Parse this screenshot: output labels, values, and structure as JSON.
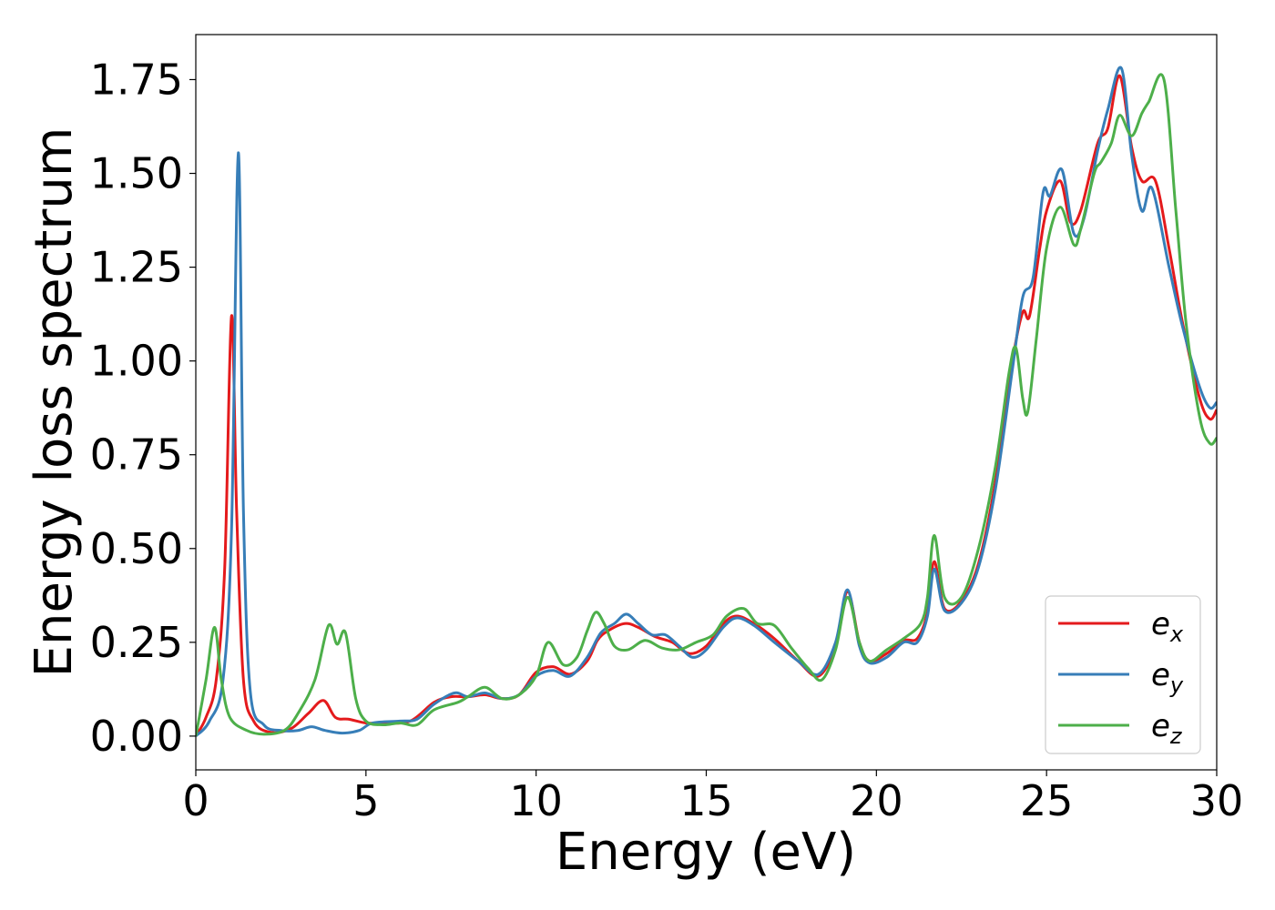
{
  "chart_data": {
    "type": "line",
    "title": "",
    "xlabel": "Energy (eV)",
    "ylabel": "Energy loss spectrum",
    "xlim": [
      0,
      30
    ],
    "ylim": [
      -0.09,
      1.87
    ],
    "xticks": [
      0,
      5,
      10,
      15,
      20,
      25,
      30
    ],
    "xtick_labels": [
      "0",
      "5",
      "10",
      "15",
      "20",
      "25",
      "30"
    ],
    "yticks": [
      0.0,
      0.25,
      0.5,
      0.75,
      1.0,
      1.25,
      1.5,
      1.75
    ],
    "ytick_labels": [
      "0.00",
      "0.25",
      "0.50",
      "0.75",
      "1.00",
      "1.25",
      "1.50",
      "1.75"
    ],
    "grid": false,
    "legend_position": "bottom-right",
    "series": [
      {
        "name": "e",
        "subscript": "x",
        "color": "#e41a1c",
        "points": [
          [
            0,
            0
          ],
          [
            0.3,
            0.05
          ],
          [
            0.6,
            0.15
          ],
          [
            0.85,
            0.45
          ],
          [
            1.05,
            1.12
          ],
          [
            1.2,
            0.6
          ],
          [
            1.4,
            0.15
          ],
          [
            1.7,
            0.04
          ],
          [
            2.2,
            0.01
          ],
          [
            2.8,
            0.02
          ],
          [
            3.3,
            0.06
          ],
          [
            3.75,
            0.095
          ],
          [
            4.1,
            0.05
          ],
          [
            4.5,
            0.045
          ],
          [
            5.0,
            0.035
          ],
          [
            5.5,
            0.035
          ],
          [
            6.3,
            0.04
          ],
          [
            7.0,
            0.09
          ],
          [
            7.5,
            0.105
          ],
          [
            8.0,
            0.105
          ],
          [
            8.5,
            0.11
          ],
          [
            9.0,
            0.1
          ],
          [
            9.5,
            0.11
          ],
          [
            10.0,
            0.17
          ],
          [
            10.5,
            0.185
          ],
          [
            11.0,
            0.165
          ],
          [
            11.5,
            0.2
          ],
          [
            11.8,
            0.255
          ],
          [
            12.1,
            0.28
          ],
          [
            12.6,
            0.3
          ],
          [
            13.0,
            0.29
          ],
          [
            13.5,
            0.265
          ],
          [
            14.0,
            0.25
          ],
          [
            14.5,
            0.22
          ],
          [
            15.0,
            0.24
          ],
          [
            15.5,
            0.3
          ],
          [
            15.9,
            0.32
          ],
          [
            16.4,
            0.3
          ],
          [
            17.0,
            0.26
          ],
          [
            17.7,
            0.2
          ],
          [
            18.3,
            0.16
          ],
          [
            18.8,
            0.24
          ],
          [
            19.15,
            0.385
          ],
          [
            19.5,
            0.25
          ],
          [
            19.8,
            0.2
          ],
          [
            20.3,
            0.22
          ],
          [
            20.8,
            0.255
          ],
          [
            21.2,
            0.26
          ],
          [
            21.5,
            0.33
          ],
          [
            21.7,
            0.465
          ],
          [
            22.0,
            0.34
          ],
          [
            22.5,
            0.36
          ],
          [
            23.0,
            0.46
          ],
          [
            23.5,
            0.68
          ],
          [
            24.0,
            1.0
          ],
          [
            24.3,
            1.13
          ],
          [
            24.5,
            1.12
          ],
          [
            24.8,
            1.3
          ],
          [
            25.0,
            1.4
          ],
          [
            25.4,
            1.48
          ],
          [
            25.7,
            1.37
          ],
          [
            26.0,
            1.4
          ],
          [
            26.5,
            1.58
          ],
          [
            26.8,
            1.62
          ],
          [
            27.15,
            1.76
          ],
          [
            27.5,
            1.57
          ],
          [
            27.8,
            1.48
          ],
          [
            28.2,
            1.48
          ],
          [
            28.6,
            1.3
          ],
          [
            29.0,
            1.1
          ],
          [
            29.5,
            0.9
          ],
          [
            29.8,
            0.845
          ],
          [
            30.0,
            0.87
          ]
        ]
      },
      {
        "name": "e",
        "subscript": "y",
        "color": "#377eb8",
        "points": [
          [
            0,
            0
          ],
          [
            0.4,
            0.04
          ],
          [
            0.8,
            0.15
          ],
          [
            1.05,
            0.55
          ],
          [
            1.25,
            1.555
          ],
          [
            1.4,
            0.6
          ],
          [
            1.6,
            0.12
          ],
          [
            2.0,
            0.03
          ],
          [
            2.5,
            0.015
          ],
          [
            3.0,
            0.015
          ],
          [
            3.4,
            0.025
          ],
          [
            3.8,
            0.015
          ],
          [
            4.3,
            0.008
          ],
          [
            4.8,
            0.015
          ],
          [
            5.2,
            0.035
          ],
          [
            6.0,
            0.04
          ],
          [
            6.5,
            0.045
          ],
          [
            7.0,
            0.085
          ],
          [
            7.6,
            0.115
          ],
          [
            8.0,
            0.105
          ],
          [
            8.5,
            0.115
          ],
          [
            9.0,
            0.1
          ],
          [
            9.5,
            0.11
          ],
          [
            10.0,
            0.16
          ],
          [
            10.5,
            0.175
          ],
          [
            11.0,
            0.16
          ],
          [
            11.5,
            0.21
          ],
          [
            11.9,
            0.275
          ],
          [
            12.3,
            0.3
          ],
          [
            12.65,
            0.325
          ],
          [
            13.0,
            0.3
          ],
          [
            13.4,
            0.27
          ],
          [
            13.8,
            0.27
          ],
          [
            14.2,
            0.24
          ],
          [
            14.6,
            0.21
          ],
          [
            15.0,
            0.23
          ],
          [
            15.5,
            0.29
          ],
          [
            15.9,
            0.315
          ],
          [
            16.4,
            0.295
          ],
          [
            17.0,
            0.25
          ],
          [
            17.7,
            0.2
          ],
          [
            18.3,
            0.165
          ],
          [
            18.8,
            0.25
          ],
          [
            19.15,
            0.39
          ],
          [
            19.5,
            0.24
          ],
          [
            19.8,
            0.195
          ],
          [
            20.3,
            0.21
          ],
          [
            20.8,
            0.25
          ],
          [
            21.2,
            0.25
          ],
          [
            21.5,
            0.32
          ],
          [
            21.7,
            0.445
          ],
          [
            22.0,
            0.335
          ],
          [
            22.5,
            0.355
          ],
          [
            23.0,
            0.45
          ],
          [
            23.5,
            0.66
          ],
          [
            24.0,
            0.98
          ],
          [
            24.3,
            1.17
          ],
          [
            24.6,
            1.22
          ],
          [
            24.9,
            1.45
          ],
          [
            25.1,
            1.44
          ],
          [
            25.45,
            1.51
          ],
          [
            25.8,
            1.34
          ],
          [
            26.1,
            1.38
          ],
          [
            26.5,
            1.56
          ],
          [
            26.8,
            1.67
          ],
          [
            27.2,
            1.78
          ],
          [
            27.5,
            1.55
          ],
          [
            27.8,
            1.4
          ],
          [
            28.1,
            1.46
          ],
          [
            28.6,
            1.25
          ],
          [
            29.0,
            1.09
          ],
          [
            29.5,
            0.93
          ],
          [
            29.8,
            0.875
          ],
          [
            30.0,
            0.89
          ]
        ]
      },
      {
        "name": "e",
        "subscript": "z",
        "color": "#4daf4a",
        "points": [
          [
            0,
            0
          ],
          [
            0.3,
            0.15
          ],
          [
            0.55,
            0.29
          ],
          [
            0.75,
            0.15
          ],
          [
            1.0,
            0.05
          ],
          [
            1.5,
            0.015
          ],
          [
            2.0,
            0.005
          ],
          [
            2.6,
            0.015
          ],
          [
            3.0,
            0.06
          ],
          [
            3.5,
            0.15
          ],
          [
            3.9,
            0.295
          ],
          [
            4.15,
            0.245
          ],
          [
            4.4,
            0.275
          ],
          [
            4.7,
            0.1
          ],
          [
            5.0,
            0.04
          ],
          [
            5.5,
            0.03
          ],
          [
            6.0,
            0.035
          ],
          [
            6.5,
            0.03
          ],
          [
            7.0,
            0.07
          ],
          [
            7.7,
            0.09
          ],
          [
            8.0,
            0.105
          ],
          [
            8.5,
            0.13
          ],
          [
            9.0,
            0.1
          ],
          [
            9.5,
            0.11
          ],
          [
            10.0,
            0.16
          ],
          [
            10.35,
            0.25
          ],
          [
            10.8,
            0.19
          ],
          [
            11.2,
            0.21
          ],
          [
            11.5,
            0.28
          ],
          [
            11.75,
            0.33
          ],
          [
            12.0,
            0.3
          ],
          [
            12.3,
            0.24
          ],
          [
            12.7,
            0.23
          ],
          [
            13.2,
            0.255
          ],
          [
            13.7,
            0.235
          ],
          [
            14.2,
            0.23
          ],
          [
            14.7,
            0.25
          ],
          [
            15.2,
            0.27
          ],
          [
            15.6,
            0.32
          ],
          [
            16.1,
            0.34
          ],
          [
            16.5,
            0.3
          ],
          [
            17.0,
            0.295
          ],
          [
            17.5,
            0.235
          ],
          [
            18.0,
            0.18
          ],
          [
            18.4,
            0.15
          ],
          [
            18.8,
            0.23
          ],
          [
            19.15,
            0.37
          ],
          [
            19.5,
            0.25
          ],
          [
            19.8,
            0.2
          ],
          [
            20.3,
            0.23
          ],
          [
            20.8,
            0.26
          ],
          [
            21.3,
            0.3
          ],
          [
            21.5,
            0.37
          ],
          [
            21.7,
            0.535
          ],
          [
            22.0,
            0.37
          ],
          [
            22.5,
            0.37
          ],
          [
            23.0,
            0.5
          ],
          [
            23.5,
            0.72
          ],
          [
            23.9,
            0.97
          ],
          [
            24.1,
            1.035
          ],
          [
            24.3,
            0.9
          ],
          [
            24.45,
            0.865
          ],
          [
            24.7,
            1.06
          ],
          [
            25.0,
            1.3
          ],
          [
            25.4,
            1.41
          ],
          [
            25.8,
            1.31
          ],
          [
            26.0,
            1.35
          ],
          [
            26.4,
            1.5
          ],
          [
            26.6,
            1.53
          ],
          [
            26.9,
            1.58
          ],
          [
            27.15,
            1.655
          ],
          [
            27.5,
            1.6
          ],
          [
            27.8,
            1.66
          ],
          [
            28.0,
            1.69
          ],
          [
            28.45,
            1.75
          ],
          [
            28.8,
            1.4
          ],
          [
            29.1,
            1.1
          ],
          [
            29.5,
            0.85
          ],
          [
            29.8,
            0.78
          ],
          [
            30.0,
            0.795
          ]
        ]
      }
    ]
  }
}
